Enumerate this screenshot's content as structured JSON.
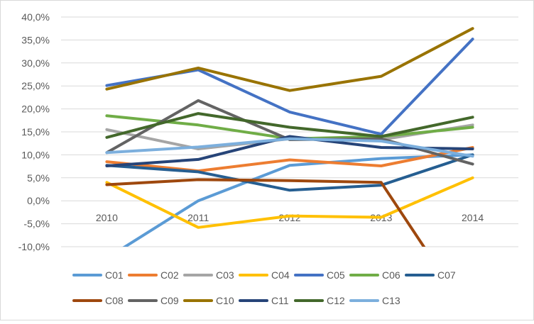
{
  "chart_data": {
    "type": "line",
    "title": "",
    "xlabel": "",
    "ylabel": "",
    "x": [
      "2010",
      "2011",
      "2012",
      "2013",
      "2014"
    ],
    "ylim": [
      -0.1,
      0.4
    ],
    "yticks": [
      {
        "value": 0.4,
        "label": "40,0%"
      },
      {
        "value": 0.35,
        "label": "35,0%"
      },
      {
        "value": 0.3,
        "label": "30,0%"
      },
      {
        "value": 0.25,
        "label": "25,0%"
      },
      {
        "value": 0.2,
        "label": "20,0%"
      },
      {
        "value": 0.15,
        "label": "15,0%"
      },
      {
        "value": 0.1,
        "label": "10,0%"
      },
      {
        "value": 0.05,
        "label": "5,0%"
      },
      {
        "value": 0.0,
        "label": "0,0%"
      },
      {
        "value": -0.05,
        "label": "-5,0%"
      },
      {
        "value": -0.1,
        "label": "-10,0%"
      }
    ],
    "grid": true,
    "legend_position": "bottom",
    "series": [
      {
        "name": "C01",
        "color": "#5B9BD5",
        "values": [
          -0.125,
          0.0,
          0.077,
          0.092,
          0.1
        ]
      },
      {
        "name": "C02",
        "color": "#ED7D31",
        "values": [
          0.085,
          0.065,
          0.089,
          0.076,
          0.116
        ]
      },
      {
        "name": "C03",
        "color": "#A5A5A5",
        "values": [
          0.155,
          0.113,
          0.135,
          0.133,
          0.165
        ]
      },
      {
        "name": "C04",
        "color": "#FFC000",
        "values": [
          0.04,
          -0.058,
          -0.033,
          -0.036,
          0.05
        ]
      },
      {
        "name": "C05",
        "color": "#4472C4",
        "values": [
          0.251,
          0.285,
          0.193,
          0.145,
          0.352
        ]
      },
      {
        "name": "C06",
        "color": "#70AD47",
        "values": [
          0.185,
          0.165,
          0.135,
          0.14,
          0.16
        ]
      },
      {
        "name": "C07",
        "color": "#255E91",
        "values": [
          0.077,
          0.063,
          0.023,
          0.034,
          0.1
        ]
      },
      {
        "name": "C08",
        "color": "#9E480E",
        "values": [
          0.035,
          0.046,
          0.044,
          0.04,
          -0.26
        ]
      },
      {
        "name": "C09",
        "color": "#636363",
        "values": [
          0.105,
          0.218,
          0.133,
          0.135,
          0.08
        ]
      },
      {
        "name": "C10",
        "color": "#997300",
        "values": [
          0.243,
          0.289,
          0.24,
          0.271,
          0.375
        ]
      },
      {
        "name": "C11",
        "color": "#264478",
        "values": [
          0.076,
          0.09,
          0.14,
          0.116,
          0.113
        ]
      },
      {
        "name": "C12",
        "color": "#43682B",
        "values": [
          0.138,
          0.19,
          0.16,
          0.14,
          0.182
        ]
      },
      {
        "name": "C13",
        "color": "#7CAFDD",
        "values": [
          0.105,
          0.117,
          0.135,
          0.13,
          0.097
        ]
      }
    ]
  }
}
